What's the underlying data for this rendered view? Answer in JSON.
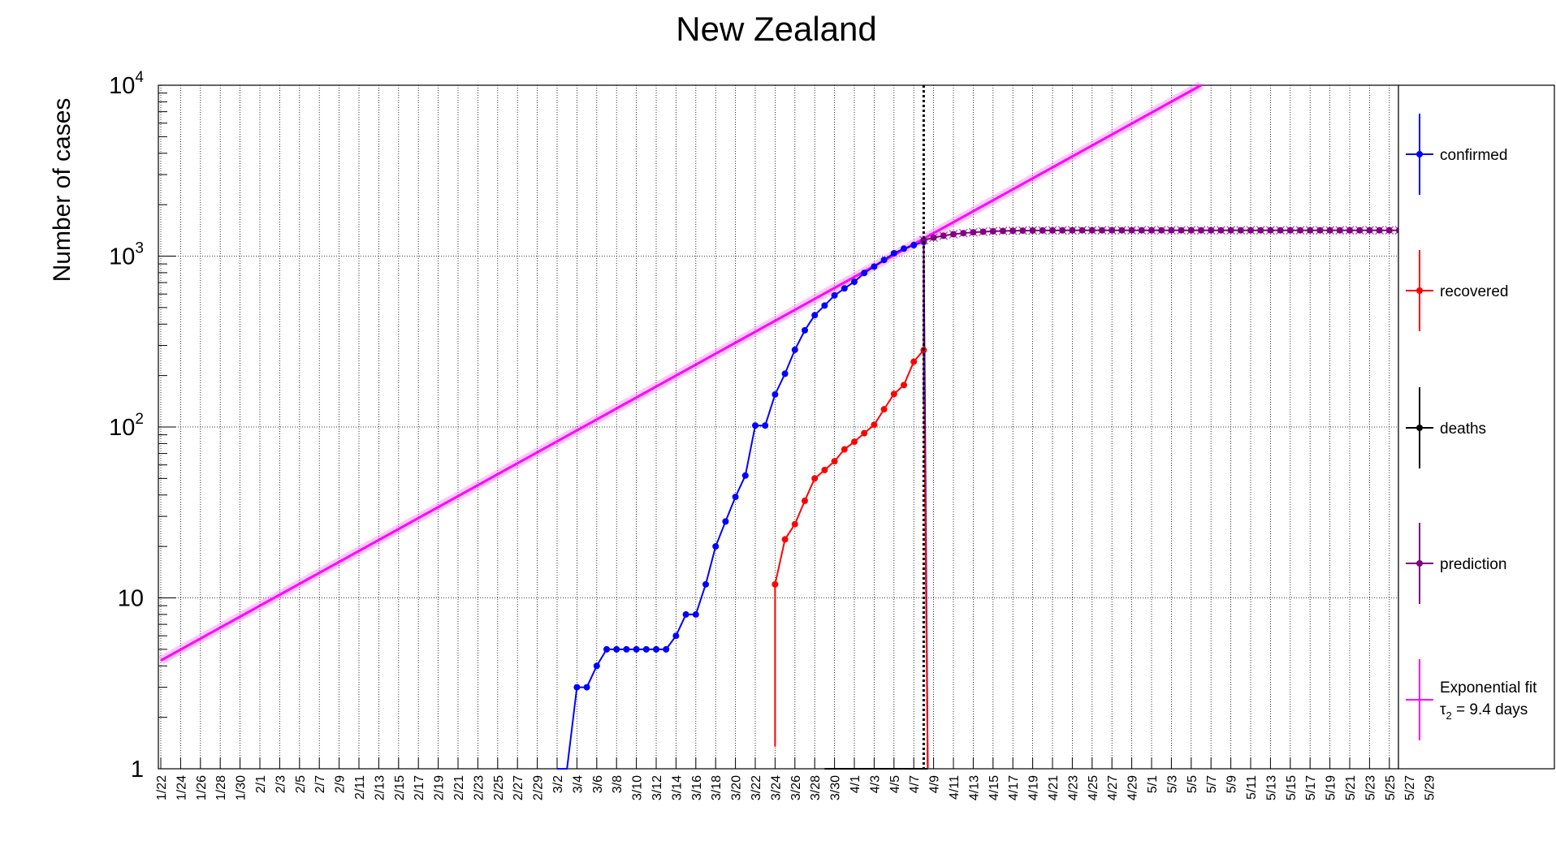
{
  "chart_data": {
    "type": "line",
    "title": "New Zealand",
    "ylabel": "Number of cases",
    "xlabel": "",
    "yscale": "log",
    "ylim": [
      1,
      10000
    ],
    "y_tick_labels": [
      {
        "value": 1,
        "base": "1",
        "exp": ""
      },
      {
        "value": 10,
        "base": "10",
        "exp": ""
      },
      {
        "value": 100,
        "base": "10",
        "exp": "2"
      },
      {
        "value": 1000,
        "base": "10",
        "exp": "3"
      },
      {
        "value": 10000,
        "base": "10",
        "exp": "4"
      }
    ],
    "x_start": "2020-01-22",
    "x_tick_labels": [
      "1/22",
      "1/24",
      "1/26",
      "1/28",
      "1/30",
      "2/1",
      "2/3",
      "2/5",
      "2/7",
      "2/9",
      "2/11",
      "2/13",
      "2/15",
      "2/17",
      "2/19",
      "2/21",
      "2/23",
      "2/25",
      "2/27",
      "2/29",
      "3/2",
      "3/4",
      "3/6",
      "3/8",
      "3/10",
      "3/12",
      "3/14",
      "3/16",
      "3/18",
      "3/20",
      "3/22",
      "3/24",
      "3/26",
      "3/28",
      "3/30",
      "4/1",
      "4/3",
      "4/5",
      "4/7",
      "4/9",
      "4/11",
      "4/13",
      "4/15",
      "4/17",
      "4/19",
      "4/21",
      "4/23",
      "4/25",
      "4/27",
      "4/29",
      "5/1",
      "5/3",
      "5/5",
      "5/7",
      "5/9",
      "5/11",
      "5/13",
      "5/15",
      "5/17",
      "5/19",
      "5/21",
      "5/23",
      "5/25",
      "5/27",
      "5/29"
    ],
    "grid": true,
    "legend_position": "right",
    "vertical_marker_date": "4/8",
    "series": [
      {
        "name": "confirmed",
        "color": "#0000ff",
        "start_date": "3/2",
        "values": [
          1,
          1,
          3,
          3,
          4,
          5,
          5,
          5,
          5,
          5,
          5,
          5,
          6,
          8,
          8,
          12,
          20,
          28,
          39,
          52,
          102,
          102,
          155,
          205,
          283,
          368,
          451,
          514,
          589,
          647,
          708,
          797,
          868,
          950,
          1039,
          1106,
          1160,
          1210
        ]
      },
      {
        "name": "recovered",
        "color": "#ff0000",
        "start_date": "3/24",
        "values": [
          12,
          22,
          27,
          37,
          50,
          56,
          63,
          74,
          82,
          92,
          103,
          127,
          156,
          176,
          241,
          282
        ]
      },
      {
        "name": "deaths",
        "color": "#000000",
        "start_date": "3/29",
        "values": [
          1,
          1,
          1,
          1,
          1,
          1,
          1,
          1,
          1,
          1,
          1
        ]
      },
      {
        "name": "prediction",
        "color": "#800080",
        "start_date": "4/8",
        "values": [
          1239,
          1283,
          1316,
          1343,
          1363,
          1378,
          1389,
          1397,
          1403,
          1407,
          1410,
          1412,
          1413,
          1414,
          1415,
          1415,
          1416,
          1416,
          1416,
          1416,
          1416,
          1416,
          1416,
          1416,
          1416,
          1416,
          1416,
          1416,
          1416,
          1416,
          1416,
          1416,
          1416,
          1416,
          1416,
          1416,
          1416,
          1416,
          1416,
          1416,
          1416,
          1416,
          1416,
          1416,
          1416,
          1416,
          1416,
          1416,
          1416,
          1416,
          1416,
          1416,
          1416,
          1416
        ]
      },
      {
        "name": "Exponential fit",
        "color": "#ff00ff",
        "start_date": "1/22",
        "end_date": "5/6",
        "value_start": 4.3,
        "value_end": 10000
      }
    ],
    "legend": [
      {
        "label": "confirmed",
        "color": "#0000ff"
      },
      {
        "label": "recovered",
        "color": "#ff0000"
      },
      {
        "label": "deaths",
        "color": "#000000"
      },
      {
        "label": "prediction",
        "color": "#800080"
      },
      {
        "label": "Exponential fit",
        "sublabel_symbol": "τ",
        "sublabel_sub": "2",
        "sublabel_rest": " = 9.4 days",
        "color": "#ff00ff"
      }
    ]
  }
}
